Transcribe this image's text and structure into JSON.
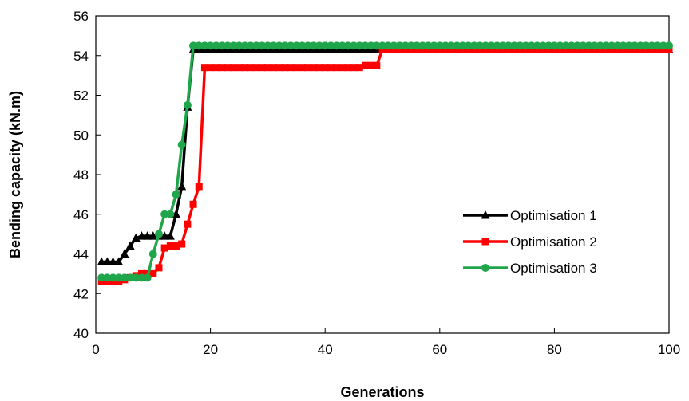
{
  "chart_data": {
    "type": "line",
    "title": "",
    "xlabel": "Generations",
    "ylabel": "Bending capacity (kN.m)",
    "xlim": [
      0,
      100
    ],
    "ylim": [
      40,
      56
    ],
    "xticks": [
      0,
      20,
      40,
      60,
      80,
      100
    ],
    "yticks": [
      40,
      42,
      44,
      46,
      48,
      50,
      52,
      54,
      56
    ],
    "grid": false,
    "legend_position": "center-right",
    "series": [
      {
        "name": "Optimisation 1",
        "color": "#000000",
        "marker": "triangle",
        "x": [
          1,
          2,
          3,
          4,
          5,
          6,
          7,
          8,
          9,
          10,
          11,
          12,
          13,
          14,
          15,
          16,
          17,
          18,
          19,
          20,
          21,
          22,
          23,
          24,
          25,
          26,
          27,
          28,
          29,
          30,
          31,
          32,
          33,
          34,
          35,
          36,
          37,
          38,
          39,
          40,
          41,
          42,
          43,
          44,
          45,
          46,
          47,
          48,
          49,
          50,
          51,
          52,
          53,
          54,
          55,
          56,
          57,
          58,
          59,
          60,
          61,
          62,
          63,
          64,
          65,
          66,
          67,
          68,
          69,
          70,
          71,
          72,
          73,
          74,
          75,
          76,
          77,
          78,
          79,
          80,
          81,
          82,
          83,
          84,
          85,
          86,
          87,
          88,
          89,
          90,
          91,
          92,
          93,
          94,
          95,
          96,
          97,
          98,
          99,
          100
        ],
        "y": [
          43.6,
          43.6,
          43.6,
          43.6,
          44.0,
          44.4,
          44.8,
          44.9,
          44.9,
          44.9,
          44.9,
          44.9,
          44.9,
          46.0,
          47.4,
          51.4,
          54.3,
          54.3,
          54.3,
          54.3,
          54.3,
          54.3,
          54.3,
          54.3,
          54.3,
          54.3,
          54.3,
          54.3,
          54.3,
          54.3,
          54.3,
          54.3,
          54.3,
          54.3,
          54.3,
          54.3,
          54.3,
          54.3,
          54.3,
          54.3,
          54.3,
          54.3,
          54.3,
          54.3,
          54.3,
          54.3,
          54.3,
          54.3,
          54.3,
          54.3,
          54.3,
          54.3,
          54.3,
          54.3,
          54.3,
          54.3,
          54.3,
          54.3,
          54.3,
          54.3,
          54.3,
          54.3,
          54.3,
          54.3,
          54.3,
          54.3,
          54.3,
          54.3,
          54.3,
          54.3,
          54.3,
          54.3,
          54.3,
          54.3,
          54.3,
          54.3,
          54.3,
          54.3,
          54.3,
          54.3,
          54.3,
          54.3,
          54.3,
          54.3,
          54.3,
          54.3,
          54.3,
          54.3,
          54.3,
          54.3,
          54.3,
          54.3,
          54.3,
          54.3,
          54.3,
          54.3,
          54.3,
          54.3,
          54.3,
          54.3
        ]
      },
      {
        "name": "Optimisation 2",
        "color": "#ff0000",
        "marker": "square",
        "x": [
          1,
          2,
          3,
          4,
          5,
          6,
          7,
          8,
          9,
          10,
          11,
          12,
          13,
          14,
          15,
          16,
          17,
          18,
          19,
          20,
          21,
          22,
          23,
          24,
          25,
          26,
          27,
          28,
          29,
          30,
          31,
          32,
          33,
          34,
          35,
          36,
          37,
          38,
          39,
          40,
          41,
          42,
          43,
          44,
          45,
          46,
          47,
          48,
          49,
          50,
          51,
          52,
          53,
          54,
          55,
          56,
          57,
          58,
          59,
          60,
          61,
          62,
          63,
          64,
          65,
          66,
          67,
          68,
          69,
          70,
          71,
          72,
          73,
          74,
          75,
          76,
          77,
          78,
          79,
          80,
          81,
          82,
          83,
          84,
          85,
          86,
          87,
          88,
          89,
          90,
          91,
          92,
          93,
          94,
          95,
          96,
          97,
          98,
          99,
          100
        ],
        "y": [
          42.6,
          42.6,
          42.6,
          42.6,
          42.7,
          42.8,
          42.9,
          43.0,
          43.0,
          43.0,
          43.3,
          44.3,
          44.4,
          44.4,
          44.5,
          45.5,
          46.5,
          47.4,
          53.4,
          53.4,
          53.4,
          53.4,
          53.4,
          53.4,
          53.4,
          53.4,
          53.4,
          53.4,
          53.4,
          53.4,
          53.4,
          53.4,
          53.4,
          53.4,
          53.4,
          53.4,
          53.4,
          53.4,
          53.4,
          53.4,
          53.4,
          53.4,
          53.4,
          53.4,
          53.4,
          53.4,
          53.5,
          53.5,
          53.5,
          54.3,
          54.3,
          54.3,
          54.3,
          54.3,
          54.3,
          54.3,
          54.3,
          54.3,
          54.3,
          54.3,
          54.3,
          54.3,
          54.3,
          54.3,
          54.3,
          54.3,
          54.3,
          54.3,
          54.3,
          54.3,
          54.3,
          54.3,
          54.3,
          54.3,
          54.3,
          54.3,
          54.3,
          54.3,
          54.3,
          54.3,
          54.3,
          54.3,
          54.3,
          54.3,
          54.3,
          54.3,
          54.3,
          54.3,
          54.3,
          54.3,
          54.3,
          54.3,
          54.3,
          54.3,
          54.3,
          54.3,
          54.3,
          54.3,
          54.3,
          54.3
        ]
      },
      {
        "name": "Optimisation 3",
        "color": "#1fa64a",
        "marker": "circle",
        "x": [
          1,
          2,
          3,
          4,
          5,
          6,
          7,
          8,
          9,
          10,
          11,
          12,
          13,
          14,
          15,
          16,
          17,
          18,
          19,
          20,
          21,
          22,
          23,
          24,
          25,
          26,
          27,
          28,
          29,
          30,
          31,
          32,
          33,
          34,
          35,
          36,
          37,
          38,
          39,
          40,
          41,
          42,
          43,
          44,
          45,
          46,
          47,
          48,
          49,
          50,
          51,
          52,
          53,
          54,
          55,
          56,
          57,
          58,
          59,
          60,
          61,
          62,
          63,
          64,
          65,
          66,
          67,
          68,
          69,
          70,
          71,
          72,
          73,
          74,
          75,
          76,
          77,
          78,
          79,
          80,
          81,
          82,
          83,
          84,
          85,
          86,
          87,
          88,
          89,
          90,
          91,
          92,
          93,
          94,
          95,
          96,
          97,
          98,
          99,
          100
        ],
        "y": [
          42.8,
          42.8,
          42.8,
          42.8,
          42.8,
          42.8,
          42.8,
          42.8,
          42.8,
          44.0,
          45.0,
          46.0,
          46.0,
          47.0,
          49.5,
          51.5,
          54.5,
          54.5,
          54.5,
          54.5,
          54.5,
          54.5,
          54.5,
          54.5,
          54.5,
          54.5,
          54.5,
          54.5,
          54.5,
          54.5,
          54.5,
          54.5,
          54.5,
          54.5,
          54.5,
          54.5,
          54.5,
          54.5,
          54.5,
          54.5,
          54.5,
          54.5,
          54.5,
          54.5,
          54.5,
          54.5,
          54.5,
          54.5,
          54.5,
          54.5,
          54.5,
          54.5,
          54.5,
          54.5,
          54.5,
          54.5,
          54.5,
          54.5,
          54.5,
          54.5,
          54.5,
          54.5,
          54.5,
          54.5,
          54.5,
          54.5,
          54.5,
          54.5,
          54.5,
          54.5,
          54.5,
          54.5,
          54.5,
          54.5,
          54.5,
          54.5,
          54.5,
          54.5,
          54.5,
          54.5,
          54.5,
          54.5,
          54.5,
          54.5,
          54.5,
          54.5,
          54.5,
          54.5,
          54.5,
          54.5,
          54.5,
          54.5,
          54.5,
          54.5,
          54.5,
          54.5,
          54.5,
          54.5,
          54.5,
          54.5
        ]
      }
    ]
  }
}
